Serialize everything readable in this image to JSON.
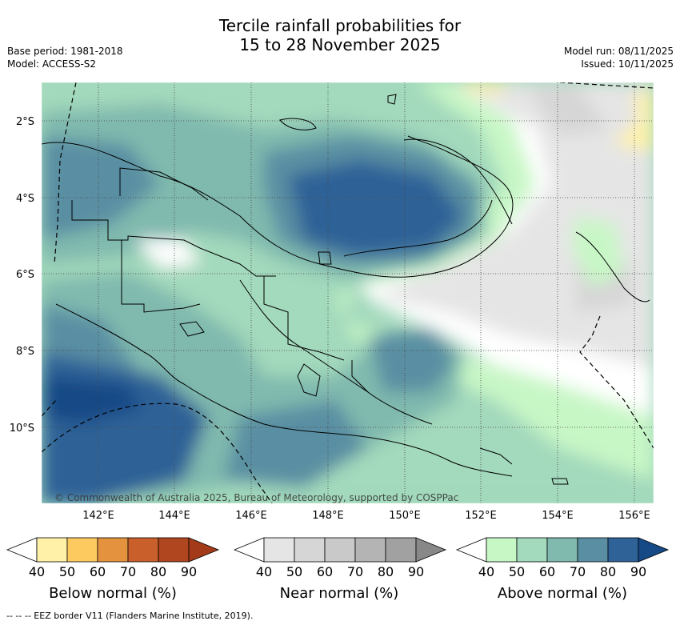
{
  "title": {
    "line1": "Tercile rainfall probabilities for",
    "line2": "15 to 28 November 2025"
  },
  "meta_left": {
    "base_period": "Base period: 1981-2018",
    "model": "Model: ACCESS-S2"
  },
  "meta_right": {
    "model_run": "Model run: 08/11/2025",
    "issued": "Issued: 10/11/2025"
  },
  "map": {
    "lat_labels": [
      "2°S",
      "4°S",
      "6°S",
      "8°S",
      "10°S"
    ],
    "lon_labels": [
      "142°E",
      "144°E",
      "146°E",
      "148°E",
      "150°E",
      "152°E",
      "154°E",
      "156°E"
    ],
    "copyright": "© Commonwealth of Australia 2025, Bureau of Meteorology, supported by COSPPac"
  },
  "colorbars": [
    {
      "label": "Below normal (%)",
      "ticks": [
        "40",
        "50",
        "60",
        "70",
        "80",
        "90"
      ],
      "colors": [
        "#fff1a8",
        "#fdca60",
        "#e4923e",
        "#c95f2b",
        "#b0461f",
        "#a33b1a"
      ]
    },
    {
      "label": "Near normal (%)",
      "ticks": [
        "40",
        "50",
        "60",
        "70",
        "80",
        "90"
      ],
      "colors": [
        "#e5e5e5",
        "#d6d6d6",
        "#c9c9c9",
        "#b4b4b4",
        "#a1a1a1",
        "#888888"
      ]
    },
    {
      "label": "Above normal (%)",
      "ticks": [
        "40",
        "50",
        "60",
        "70",
        "80",
        "90"
      ],
      "colors": [
        "#c8f7c6",
        "#a3d9bc",
        "#80b9ae",
        "#5a8fa3",
        "#2f6297",
        "#164a86"
      ]
    }
  ],
  "footer": "--  --  -- EEZ border V11 (Flanders Marine Institute, 2019)."
}
